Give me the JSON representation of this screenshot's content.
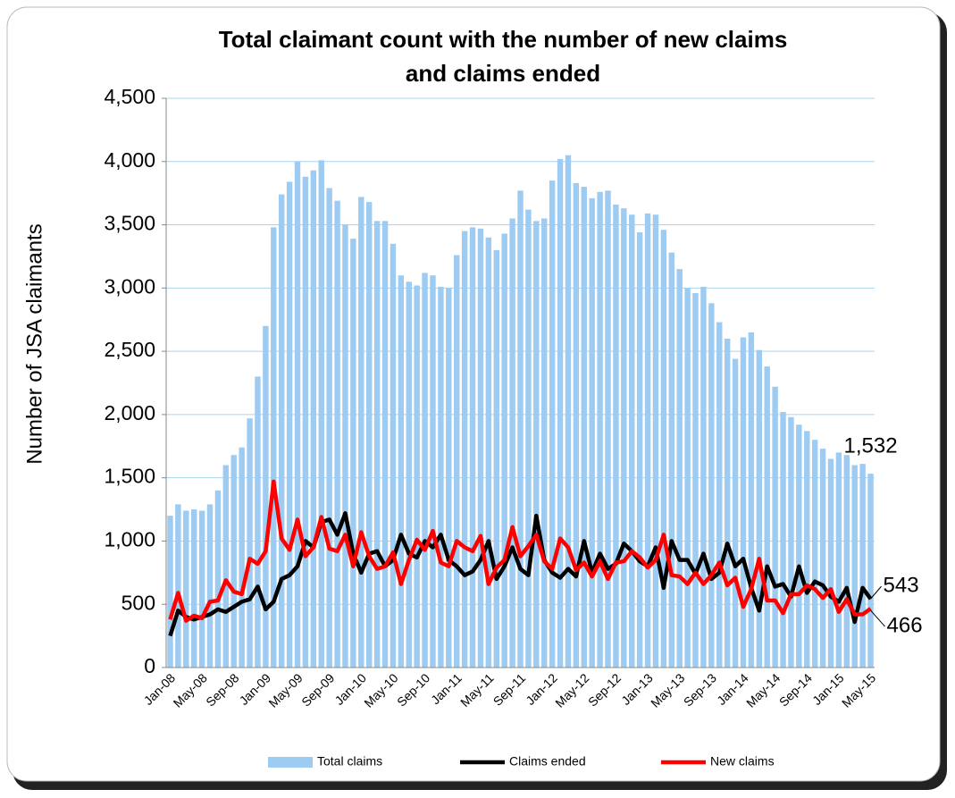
{
  "chart_data": {
    "type": "bar",
    "title": "Total claimant count with the number of new claims and claims ended",
    "title_lines": [
      "Total claimant count with the number of new claims",
      "and claims ended"
    ],
    "y_label": "Number of JSA claimants",
    "categories": [
      "Jan-08",
      null,
      null,
      null,
      "May-08",
      null,
      null,
      null,
      "Sep-08",
      null,
      null,
      null,
      "Jan-09",
      null,
      null,
      null,
      "May-09",
      null,
      null,
      null,
      "Sep-09",
      null,
      null,
      null,
      "Jan-10",
      null,
      null,
      null,
      "May-10",
      null,
      null,
      null,
      "Sep-10",
      null,
      null,
      null,
      "Jan-11",
      null,
      null,
      null,
      "May-11",
      null,
      null,
      null,
      "Sep-11",
      null,
      null,
      null,
      "Jan-12",
      null,
      null,
      null,
      "May-12",
      null,
      null,
      null,
      "Sep-12",
      null,
      null,
      null,
      "Jan-13",
      null,
      null,
      null,
      "May-13",
      null,
      null,
      null,
      "Sep-13",
      null,
      null,
      null,
      "Jan-14",
      null,
      null,
      null,
      "May-14",
      null,
      null,
      null,
      "Sep-14",
      null,
      null,
      null,
      "Jan-15",
      null,
      null,
      null,
      "May-15"
    ],
    "series": [
      {
        "name": "Total claims",
        "type": "bar",
        "color": "#9dcbf2",
        "values": [
          1200,
          1290,
          1240,
          1250,
          1240,
          1290,
          1400,
          1600,
          1680,
          1740,
          1970,
          2300,
          2700,
          3480,
          3740,
          3840,
          4000,
          3880,
          3930,
          4010,
          3790,
          3690,
          3500,
          3390,
          3720,
          3680,
          3530,
          3530,
          3350,
          3100,
          3050,
          3020,
          3120,
          3100,
          3010,
          3000,
          3260,
          3450,
          3480,
          3470,
          3400,
          3300,
          3430,
          3550,
          3770,
          3620,
          3530,
          3550,
          3850,
          4020,
          4050,
          3830,
          3800,
          3710,
          3760,
          3770,
          3660,
          3630,
          3580,
          3440,
          3590,
          3580,
          3460,
          3280,
          3150,
          3000,
          2960,
          3010,
          2880,
          2730,
          2600,
          2440,
          2610,
          2650,
          2510,
          2380,
          2220,
          2020,
          1980,
          1920,
          1870,
          1800,
          1730,
          1650,
          1700,
          1680,
          1600,
          1610,
          1532
        ]
      },
      {
        "name": "Claims ended",
        "type": "line",
        "color": "#000000",
        "values": [
          250,
          450,
          400,
          380,
          400,
          420,
          460,
          440,
          480,
          520,
          540,
          640,
          460,
          520,
          700,
          730,
          800,
          1000,
          950,
          1150,
          1170,
          1050,
          1220,
          900,
          750,
          900,
          920,
          800,
          850,
          1050,
          900,
          870,
          1000,
          950,
          1050,
          850,
          800,
          730,
          760,
          850,
          1000,
          700,
          800,
          950,
          780,
          730,
          1200,
          850,
          750,
          710,
          780,
          720,
          1000,
          750,
          900,
          780,
          820,
          980,
          920,
          840,
          800,
          950,
          630,
          1000,
          850,
          850,
          740,
          900,
          700,
          750,
          980,
          800,
          860,
          630,
          450,
          800,
          640,
          660,
          560,
          800,
          590,
          680,
          650,
          560,
          520,
          630,
          360,
          630,
          543
        ]
      },
      {
        "name": "New claims",
        "type": "line",
        "color": "#ff0000",
        "values": [
          380,
          590,
          370,
          410,
          390,
          520,
          530,
          690,
          600,
          580,
          860,
          820,
          920,
          1470,
          1020,
          930,
          1170,
          880,
          950,
          1190,
          940,
          920,
          1050,
          800,
          1070,
          880,
          780,
          800,
          910,
          660,
          850,
          1010,
          930,
          1080,
          830,
          800,
          1000,
          950,
          920,
          1040,
          660,
          790,
          850,
          1110,
          880,
          960,
          1050,
          840,
          780,
          1020,
          950,
          770,
          830,
          720,
          840,
          700,
          830,
          840,
          920,
          870,
          790,
          850,
          1050,
          730,
          720,
          660,
          750,
          660,
          730,
          830,
          650,
          710,
          480,
          620,
          860,
          530,
          530,
          430,
          580,
          580,
          650,
          620,
          550,
          620,
          440,
          540,
          420,
          420,
          466
        ]
      }
    ],
    "annotations": [
      "1,532",
      "543",
      "466"
    ],
    "ylim": [
      0,
      4500
    ],
    "yticks": [
      0,
      500,
      {
        "value": 1000,
        "label": "1,000"
      },
      {
        "value": 1500,
        "label": "1,500"
      },
      {
        "value": 2000,
        "label": "2,000"
      },
      {
        "value": 2500,
        "label": "2,500"
      },
      {
        "value": 3000,
        "label": "3,000"
      },
      {
        "value": 3500,
        "label": "3,500"
      },
      {
        "value": 4000,
        "label": "4,000"
      },
      {
        "value": 4500,
        "label": "4,500"
      }
    ],
    "grid": true,
    "grid_color": "#a9d4ee",
    "legend": "bottom"
  }
}
